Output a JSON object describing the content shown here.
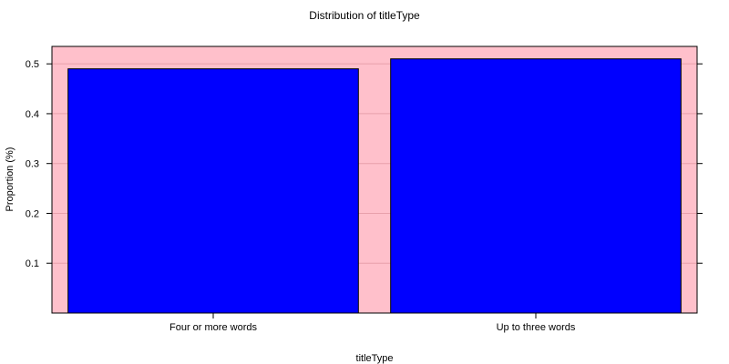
{
  "chart_data": {
    "type": "bar",
    "title": "Distribution of titleType",
    "xlabel": "titleType",
    "ylabel": "Proportion (%)",
    "categories": [
      "Four or more words",
      "Up to three words"
    ],
    "values": [
      0.49,
      0.51
    ],
    "ylim": [
      0,
      0.535
    ],
    "yticks": [
      0.1,
      0.2,
      0.3,
      0.4,
      0.5
    ],
    "ytick_labels": [
      "0.1",
      "0.2",
      "0.3",
      "0.4",
      "0.5"
    ],
    "grid": true,
    "colors": {
      "bar_fill": "#0000ff",
      "panel_background": "#ffc0cb",
      "gridline": "#e8a0ab"
    }
  }
}
